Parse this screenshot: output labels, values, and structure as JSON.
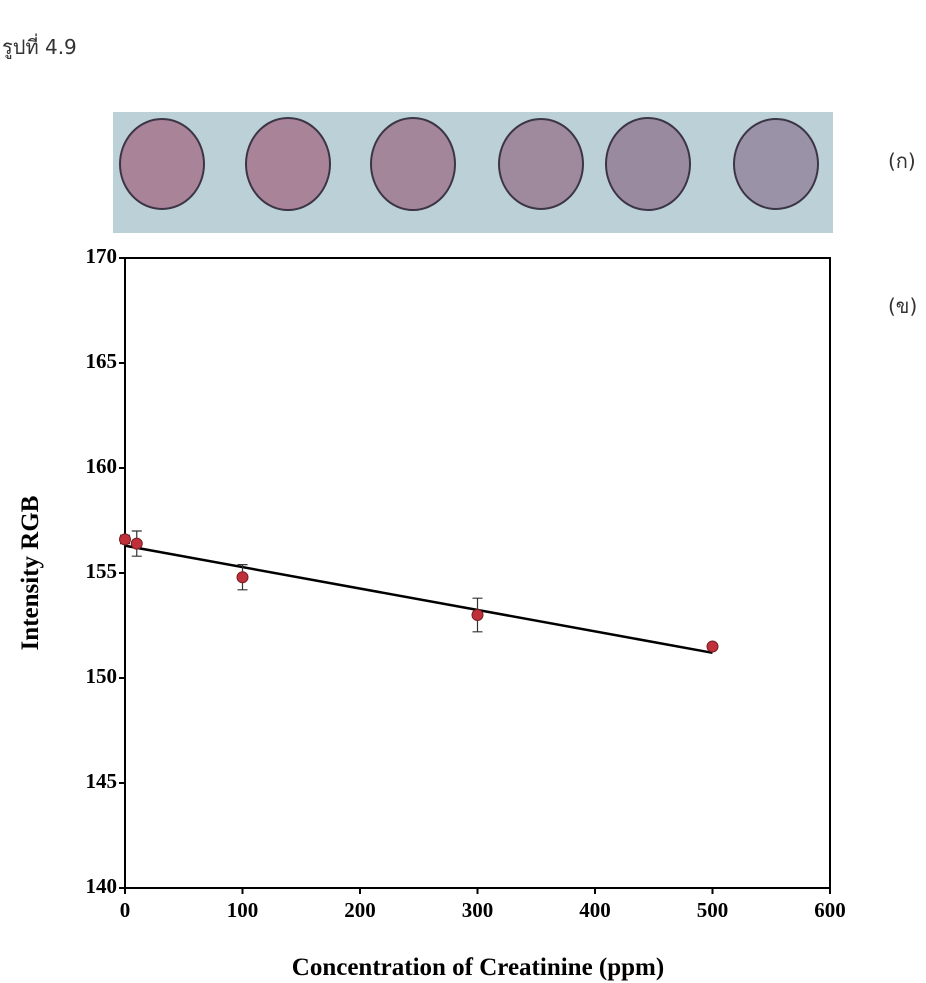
{
  "figure_label": "รูปที่ 4.9",
  "panel_labels": [
    "(ก)",
    "(ข)"
  ],
  "chart_data": {
    "type": "scatter",
    "x_label": "Concentration of Creatinine (ppm)",
    "y_label": "Intensity RGB",
    "x": [
      0,
      10,
      100,
      300,
      500
    ],
    "values": [
      156.6,
      156.4,
      154.8,
      153.0,
      151.5
    ],
    "errors": [
      0.2,
      0.6,
      0.6,
      0.8,
      0.1
    ],
    "color": "#c0303a",
    "trend_line": {
      "x": [
        0,
        500
      ],
      "y": [
        156.3,
        151.2
      ],
      "color": "#000000"
    },
    "xlim": [
      0,
      600
    ],
    "xticks": [
      0,
      100,
      200,
      300,
      400,
      500,
      600
    ],
    "ylim": [
      140,
      170
    ],
    "yticks": [
      140,
      145,
      150,
      155,
      160,
      165,
      170
    ],
    "grid": false
  }
}
